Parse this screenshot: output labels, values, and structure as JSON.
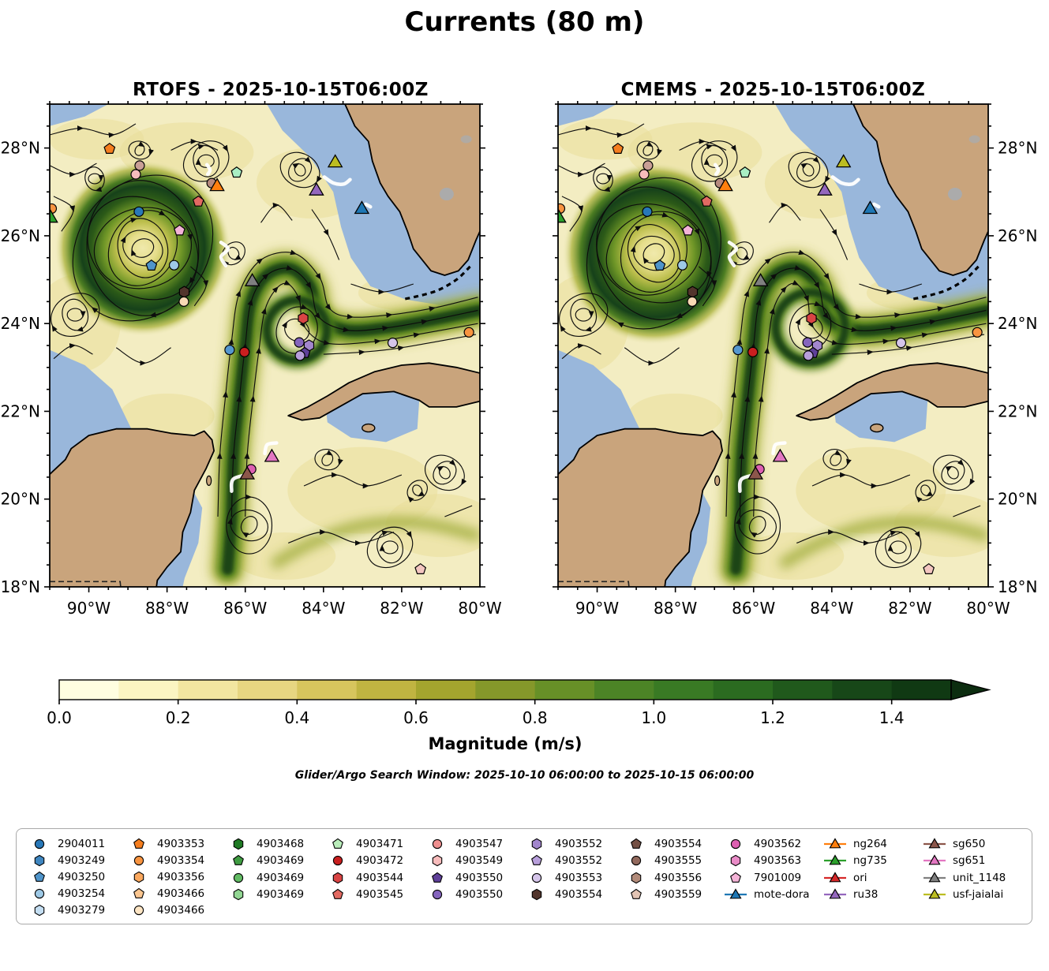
{
  "figure": {
    "title": "Currents (80 m)",
    "note": "Glider/Argo Search Window: 2025-10-10 06:00:00 to 2025-10-15 06:00:00"
  },
  "chart_data": {
    "type": "map-streamplot-pair",
    "panels": [
      {
        "title": "RTOFS - 2025-10-15T06:00Z",
        "label_side": "left"
      },
      {
        "title": "CMEMS - 2025-10-15T06:00Z",
        "label_side": "right"
      }
    ],
    "lon_range": [
      -91,
      -80
    ],
    "lat_range": [
      18,
      29
    ],
    "x_tick_lons": [
      -90,
      -88,
      -86,
      -84,
      -82,
      -80
    ],
    "x_ticks": [
      "90°W",
      "88°W",
      "86°W",
      "84°W",
      "82°W",
      "80°W"
    ],
    "y_tick_lats": [
      28,
      26,
      24,
      22,
      20,
      18
    ],
    "y_ticks": [
      "28°N",
      "26°N",
      "24°N",
      "22°N",
      "20°N",
      "18°N"
    ],
    "colorbar": {
      "label": "Magnitude (m/s)",
      "ticks": [
        "0.0",
        "0.2",
        "0.4",
        "0.6",
        "0.8",
        "1.0",
        "1.2",
        "1.4"
      ],
      "tick_values": [
        0,
        0.2,
        0.4,
        0.6,
        0.8,
        1.0,
        1.2,
        1.4
      ],
      "vmin": 0.0,
      "vmax": 1.5,
      "segment_colors": [
        "#fffee0",
        "#fbf5c2",
        "#f2e6a0",
        "#e7d681",
        "#d7c55d",
        "#c0b441",
        "#a4a52e",
        "#85982a",
        "#679027",
        "#4c8426",
        "#397a24",
        "#2b6b20",
        "#20591c",
        "#174718",
        "#103913"
      ],
      "arrow_color": "#0c2d10"
    },
    "map_markers": {
      "floats": [
        {
          "shape": "pentagon",
          "color": "#f57e1f",
          "lon": -89.47,
          "lat": 27.98
        },
        {
          "shape": "circle",
          "color": "#c99f96",
          "lon": -88.7,
          "lat": 27.6
        },
        {
          "shape": "circle",
          "color": "#f6bcbc",
          "lon": -88.8,
          "lat": 27.4
        },
        {
          "shape": "pentagon",
          "color": "#a9efc4",
          "lon": -86.22,
          "lat": 27.44
        },
        {
          "shape": "circle",
          "color": "#b5897e",
          "lon": -86.86,
          "lat": 27.2
        },
        {
          "shape": "pentagon",
          "color": "#e26a62",
          "lon": -87.2,
          "lat": 26.78
        },
        {
          "shape": "circle",
          "color": "#2878b8",
          "lon": -88.72,
          "lat": 26.55
        },
        {
          "shape": "pentagon",
          "color": "#f4b3d7",
          "lon": -87.68,
          "lat": 26.12
        },
        {
          "shape": "pentagon",
          "color": "#4f94ca",
          "lon": -88.4,
          "lat": 25.32
        },
        {
          "shape": "circle",
          "color": "#9ec9e6",
          "lon": -87.82,
          "lat": 25.33
        },
        {
          "shape": "hexagon",
          "color": "#52352c",
          "lon": -87.56,
          "lat": 24.72
        },
        {
          "shape": "circle",
          "color": "#f8d9b4",
          "lon": -87.57,
          "lat": 24.5
        },
        {
          "shape": "hexagon",
          "color": "#d94444",
          "lon": -84.52,
          "lat": 24.12
        },
        {
          "shape": "circle",
          "color": "#5598cf",
          "lon": -86.4,
          "lat": 23.4
        },
        {
          "shape": "circle",
          "color": "#c91f1f",
          "lon": -86.02,
          "lat": 23.35
        },
        {
          "shape": "circle",
          "color": "#8565bd",
          "lon": -84.62,
          "lat": 23.57
        },
        {
          "shape": "hexagon",
          "color": "#a286cd",
          "lon": -84.37,
          "lat": 23.5
        },
        {
          "shape": "pentagon",
          "color": "#5f4099",
          "lon": -84.48,
          "lat": 23.33
        },
        {
          "shape": "circle",
          "color": "#b89fdb",
          "lon": -84.6,
          "lat": 23.27
        },
        {
          "shape": "circle",
          "color": "#d5c5ea",
          "lon": -82.23,
          "lat": 23.56
        },
        {
          "shape": "circle",
          "color": "#f89440",
          "lon": -80.28,
          "lat": 23.8
        },
        {
          "shape": "circle",
          "color": "#dd5fb1",
          "lon": -85.85,
          "lat": 20.68
        },
        {
          "shape": "pentagon",
          "color": "#f3c6c0",
          "lon": -81.52,
          "lat": 18.4
        },
        {
          "shape": "circle",
          "color": "#f89440",
          "lon": -90.95,
          "lat": 26.62
        }
      ],
      "gliders": [
        {
          "id": "usf-jaialai",
          "color": "#bcbd22",
          "lon": -83.7,
          "lat": 27.66
        },
        {
          "id": "ru38",
          "color": "#9467bd",
          "lon": -84.18,
          "lat": 27.02
        },
        {
          "id": "ng264",
          "color": "#ff7f0e",
          "lon": -86.72,
          "lat": 27.12
        },
        {
          "id": "mote-dora",
          "color": "#1f77b4",
          "lon": -83.02,
          "lat": 26.6
        },
        {
          "id": "unit_1148",
          "color": "#7f7f7f",
          "lon": -85.82,
          "lat": 24.95
        },
        {
          "id": "sg651",
          "color": "#e377c2",
          "lon": -85.32,
          "lat": 20.95
        },
        {
          "id": "sg650",
          "color": "#8c564b",
          "lon": -85.95,
          "lat": 20.55
        },
        {
          "id": "ng735",
          "color": "#2ca02c",
          "lon": -90.98,
          "lat": 26.4
        }
      ],
      "glider_tracks": [
        [
          [
            -86.98,
            27.62
          ],
          [
            -86.9,
            27.5
          ],
          [
            -86.96,
            27.4
          ]
        ],
        [
          [
            -83.98,
            27.34
          ],
          [
            -83.74,
            27.2
          ],
          [
            -83.48,
            27.18
          ],
          [
            -83.32,
            27.28
          ]
        ],
        [
          [
            -86.62,
            25.85
          ],
          [
            -86.44,
            25.7
          ],
          [
            -86.62,
            25.52
          ],
          [
            -86.5,
            25.32
          ]
        ],
        [
          [
            -82.92,
            26.72
          ],
          [
            -82.8,
            26.66
          ]
        ],
        [
          [
            -85.2,
            21.28
          ],
          [
            -85.44,
            21.24
          ],
          [
            -85.5,
            21.04
          ]
        ],
        [
          [
            -86.35,
            20.18
          ],
          [
            -86.3,
            20.46
          ],
          [
            -85.82,
            20.58
          ]
        ]
      ]
    },
    "legend_columns": [
      [
        {
          "label": "2904011",
          "shape": "circle",
          "color": "#2878b8"
        },
        {
          "label": "4903249",
          "shape": "hexagon",
          "color": "#3f86c0"
        },
        {
          "label": "4903250",
          "shape": "pentagon",
          "color": "#4f94ca"
        },
        {
          "label": "4903254",
          "shape": "circle",
          "color": "#9ec9e6"
        },
        {
          "label": "4903279",
          "shape": "hexagon",
          "color": "#c4def2"
        }
      ],
      [
        {
          "label": "4903353",
          "shape": "pentagon",
          "color": "#f57e1f"
        },
        {
          "label": "4903354",
          "shape": "circle",
          "color": "#f89440"
        },
        {
          "label": "4903356",
          "shape": "hexagon",
          "color": "#faa85e"
        },
        {
          "label": "4903466",
          "shape": "pentagon",
          "color": "#fbc690"
        },
        {
          "label": "4903466",
          "shape": "circle",
          "color": "#fde5c4"
        }
      ],
      [
        {
          "label": "4903468",
          "shape": "hexagon",
          "color": "#1f7a24"
        },
        {
          "label": "4903469",
          "shape": "pentagon",
          "color": "#3f9c42"
        },
        {
          "label": "4903469",
          "shape": "circle",
          "color": "#62bb64"
        },
        {
          "label": "4903469",
          "shape": "hexagon",
          "color": "#92d693"
        }
      ],
      [
        {
          "label": "4903471",
          "shape": "pentagon",
          "color": "#b9edba"
        },
        {
          "label": "4903472",
          "shape": "circle",
          "color": "#c91f1f"
        },
        {
          "label": "4903544",
          "shape": "hexagon",
          "color": "#d94444"
        },
        {
          "label": "4903545",
          "shape": "pentagon",
          "color": "#e26a62"
        }
      ],
      [
        {
          "label": "4903547",
          "shape": "circle",
          "color": "#ef8f8f"
        },
        {
          "label": "4903549",
          "shape": "hexagon",
          "color": "#f8bcbc"
        },
        {
          "label": "4903550",
          "shape": "pentagon",
          "color": "#5f4099"
        },
        {
          "label": "4903550",
          "shape": "circle",
          "color": "#8565bd"
        }
      ],
      [
        {
          "label": "4903552",
          "shape": "hexagon",
          "color": "#a286cd"
        },
        {
          "label": "4903552",
          "shape": "pentagon",
          "color": "#b89fdb"
        },
        {
          "label": "4903553",
          "shape": "circle",
          "color": "#d5c5ea"
        },
        {
          "label": "4903554",
          "shape": "hexagon",
          "color": "#52352c"
        }
      ],
      [
        {
          "label": "4903554",
          "shape": "pentagon",
          "color": "#745045"
        },
        {
          "label": "4903555",
          "shape": "circle",
          "color": "#92695d"
        },
        {
          "label": "4903556",
          "shape": "hexagon",
          "color": "#b28b7a"
        },
        {
          "label": "4903559",
          "shape": "pentagon",
          "color": "#e3c4b4"
        }
      ],
      [
        {
          "label": "4903562",
          "shape": "circle",
          "color": "#dd5fb1"
        },
        {
          "label": "4903563",
          "shape": "hexagon",
          "color": "#e98bc7"
        },
        {
          "label": "7901009",
          "shape": "pentagon",
          "color": "#f4b3d7"
        },
        {
          "label": "mote-dora",
          "shape": "triangle",
          "color": "#1f77b4",
          "line": true
        }
      ],
      [
        {
          "label": "ng264",
          "shape": "triangle",
          "color": "#ff7f0e",
          "line": true
        },
        {
          "label": "ng735",
          "shape": "triangle",
          "color": "#2ca02c",
          "line": true
        },
        {
          "label": "ori",
          "shape": "triangle",
          "color": "#d62728",
          "line": true
        },
        {
          "label": "ru38",
          "shape": "triangle",
          "color": "#9467bd",
          "line": true
        }
      ],
      [
        {
          "label": "sg650",
          "shape": "triangle",
          "color": "#8c564b",
          "line": true
        },
        {
          "label": "sg651",
          "shape": "triangle",
          "color": "#e377c2",
          "line": true
        },
        {
          "label": "unit_1148",
          "shape": "triangle",
          "color": "#7f7f7f",
          "line": true
        },
        {
          "label": "usf-jaialai",
          "shape": "triangle",
          "color": "#bcbd22",
          "line": true
        }
      ]
    ]
  },
  "colors": {
    "deep_water": "#f3edc2",
    "shelf_water": "#99b7db",
    "land": "#c9a47c",
    "coastline": "#000000",
    "streamline": "#0d0d0d",
    "eddy_core_dark": "#16411a",
    "band_core": "#1c4517",
    "band_mid": "#55841e",
    "band_halo": "#aab23c",
    "lake_gray": "#ababab",
    "track_white": "#ffffff"
  }
}
